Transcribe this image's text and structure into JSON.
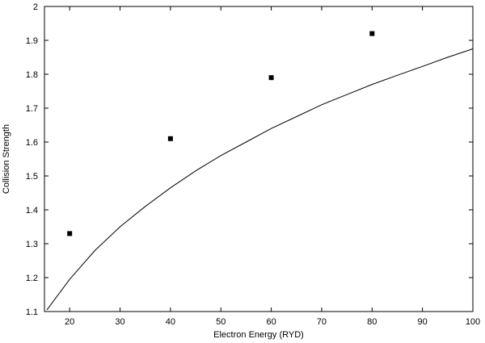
{
  "chart_data": {
    "type": "scatter",
    "title": "",
    "xlabel": "Electron Energy (RYD)",
    "ylabel": "Collision Strength",
    "xlim": [
      15,
      100
    ],
    "ylim": [
      1.1,
      2.0
    ],
    "xticks": [
      "20",
      "30",
      "40",
      "50",
      "60",
      "70",
      "80",
      "90",
      "100"
    ],
    "yticks": [
      "1.1",
      "1.2",
      "1.3",
      "1.4",
      "1.5",
      "1.6",
      "1.7",
      "1.8",
      "1.9",
      "2"
    ],
    "grid": false,
    "legend": "none",
    "series": [
      {
        "kind": "points",
        "marker": "square",
        "x": [
          20,
          40,
          60,
          80
        ],
        "y": [
          1.33,
          1.61,
          1.79,
          1.92
        ]
      },
      {
        "kind": "line",
        "x": [
          15.5,
          20,
          25,
          30,
          35,
          40,
          45,
          50,
          55,
          60,
          65,
          70,
          75,
          80,
          85,
          90,
          95,
          100
        ],
        "y": [
          1.105,
          1.195,
          1.28,
          1.35,
          1.41,
          1.465,
          1.515,
          1.56,
          1.6,
          1.64,
          1.675,
          1.71,
          1.74,
          1.77,
          1.797,
          1.823,
          1.85,
          1.875
        ]
      }
    ],
    "colors": {
      "points": "#000000",
      "line": "#000000",
      "axes": "#000000"
    }
  }
}
